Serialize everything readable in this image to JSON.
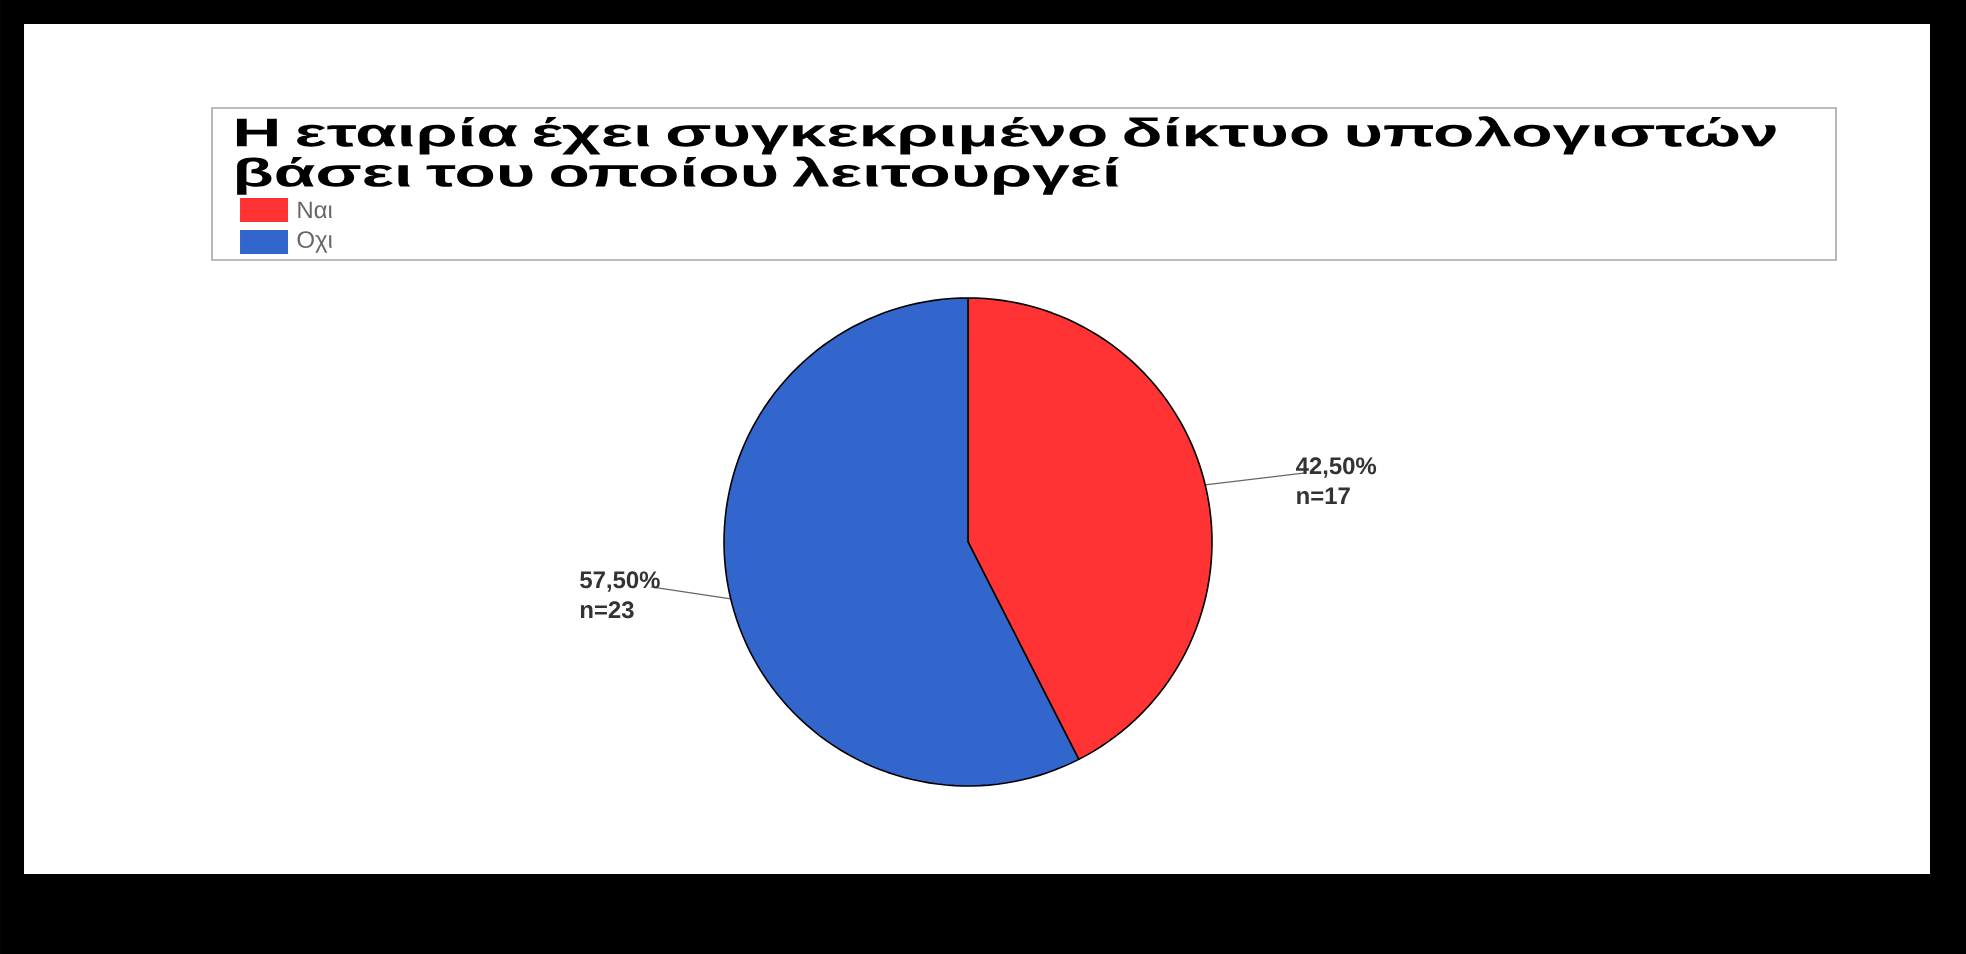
{
  "chart_data": {
    "type": "pie",
    "title": "Η εταιρία έχει συγκεκριμένο δίκτυο υπολογιστών βάσει του οποίου λειτουργεί",
    "categories": [
      "Ναι",
      "Οχι"
    ],
    "values": [
      42.5,
      57.5
    ],
    "colors": [
      "#ff3333",
      "#3366cc"
    ],
    "value_labels": [
      "42,50%",
      "57,50%"
    ],
    "annotations": [
      "n=17",
      "n=23"
    ],
    "legend": "top"
  }
}
